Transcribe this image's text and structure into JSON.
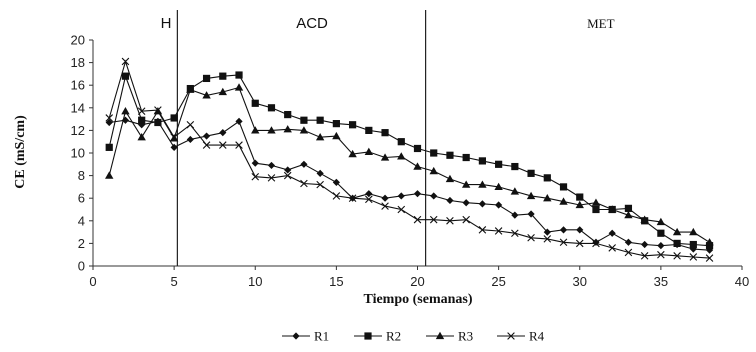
{
  "chart_data": {
    "type": "line",
    "xlabel": "Tiempo (semanas)",
    "ylabel": "CE (mS/cm)",
    "xlim": [
      0,
      40
    ],
    "ylim": [
      0,
      20
    ],
    "xticks": [
      "0",
      "5",
      "10",
      "15",
      "20",
      "25",
      "30",
      "35",
      "40"
    ],
    "yticks": [
      "0",
      "2",
      "4",
      "6",
      "8",
      "10",
      "12",
      "14",
      "16",
      "18",
      "20"
    ],
    "grid": false,
    "legend_position": "bottom-center",
    "phases": [
      {
        "label": "H",
        "label_x": 4.5
      },
      {
        "label": "ACD",
        "label_x": 13.5
      },
      {
        "label": "MET",
        "label_x": 31.3
      }
    ],
    "phase_boundaries": [
      5.2,
      20.5
    ],
    "x": [
      1,
      2,
      3,
      4,
      5,
      6,
      7,
      8,
      9,
      10,
      11,
      12,
      13,
      14,
      15,
      16,
      17,
      18,
      19,
      20,
      21,
      22,
      23,
      24,
      25,
      26,
      27,
      28,
      29,
      30,
      31,
      32,
      33,
      34,
      35,
      36,
      37,
      38
    ],
    "series": [
      {
        "name": "R1",
        "marker": "diamond",
        "values": [
          12.7,
          12.9,
          12.5,
          12.8,
          10.5,
          11.2,
          11.5,
          11.8,
          12.8,
          9.1,
          8.9,
          8.5,
          9.0,
          8.2,
          7.4,
          6.0,
          6.4,
          6.0,
          6.2,
          6.4,
          6.2,
          5.8,
          5.6,
          5.5,
          5.4,
          4.5,
          4.6,
          3.0,
          3.2,
          3.2,
          2.1,
          2.9,
          2.1,
          1.9,
          1.8,
          1.9,
          1.5,
          1.4
        ]
      },
      {
        "name": "R2",
        "marker": "square",
        "values": [
          10.5,
          16.8,
          12.9,
          12.7,
          13.1,
          15.7,
          16.6,
          16.8,
          16.9,
          14.4,
          14.0,
          13.4,
          12.9,
          12.9,
          12.6,
          12.5,
          12.0,
          11.8,
          11.0,
          10.4,
          10.0,
          9.8,
          9.6,
          9.3,
          9.0,
          8.8,
          8.2,
          7.8,
          7.0,
          6.1,
          5.0,
          5.0,
          5.1,
          4.0,
          2.9,
          2.0,
          1.9,
          1.8
        ]
      },
      {
        "name": "R3",
        "marker": "triangle",
        "values": [
          8.0,
          13.7,
          11.4,
          13.7,
          11.3,
          15.6,
          15.1,
          15.4,
          15.8,
          12.0,
          12.0,
          12.1,
          12.0,
          11.4,
          11.5,
          9.9,
          10.1,
          9.6,
          9.7,
          8.8,
          8.4,
          7.7,
          7.2,
          7.2,
          7.0,
          6.6,
          6.2,
          6.0,
          5.7,
          5.4,
          5.6,
          5.0,
          4.5,
          4.1,
          3.9,
          3.0,
          3.0,
          2.1
        ]
      },
      {
        "name": "R4",
        "marker": "x",
        "values": [
          13.1,
          18.1,
          13.7,
          13.8,
          11.4,
          12.5,
          10.7,
          10.7,
          10.7,
          7.9,
          7.8,
          8.0,
          7.3,
          7.2,
          6.2,
          6.0,
          5.9,
          5.3,
          5.0,
          4.1,
          4.1,
          4.0,
          4.1,
          3.2,
          3.1,
          2.9,
          2.5,
          2.4,
          2.1,
          2.0,
          2.0,
          1.6,
          1.2,
          0.9,
          1.0,
          0.9,
          0.8,
          0.7
        ]
      }
    ]
  }
}
